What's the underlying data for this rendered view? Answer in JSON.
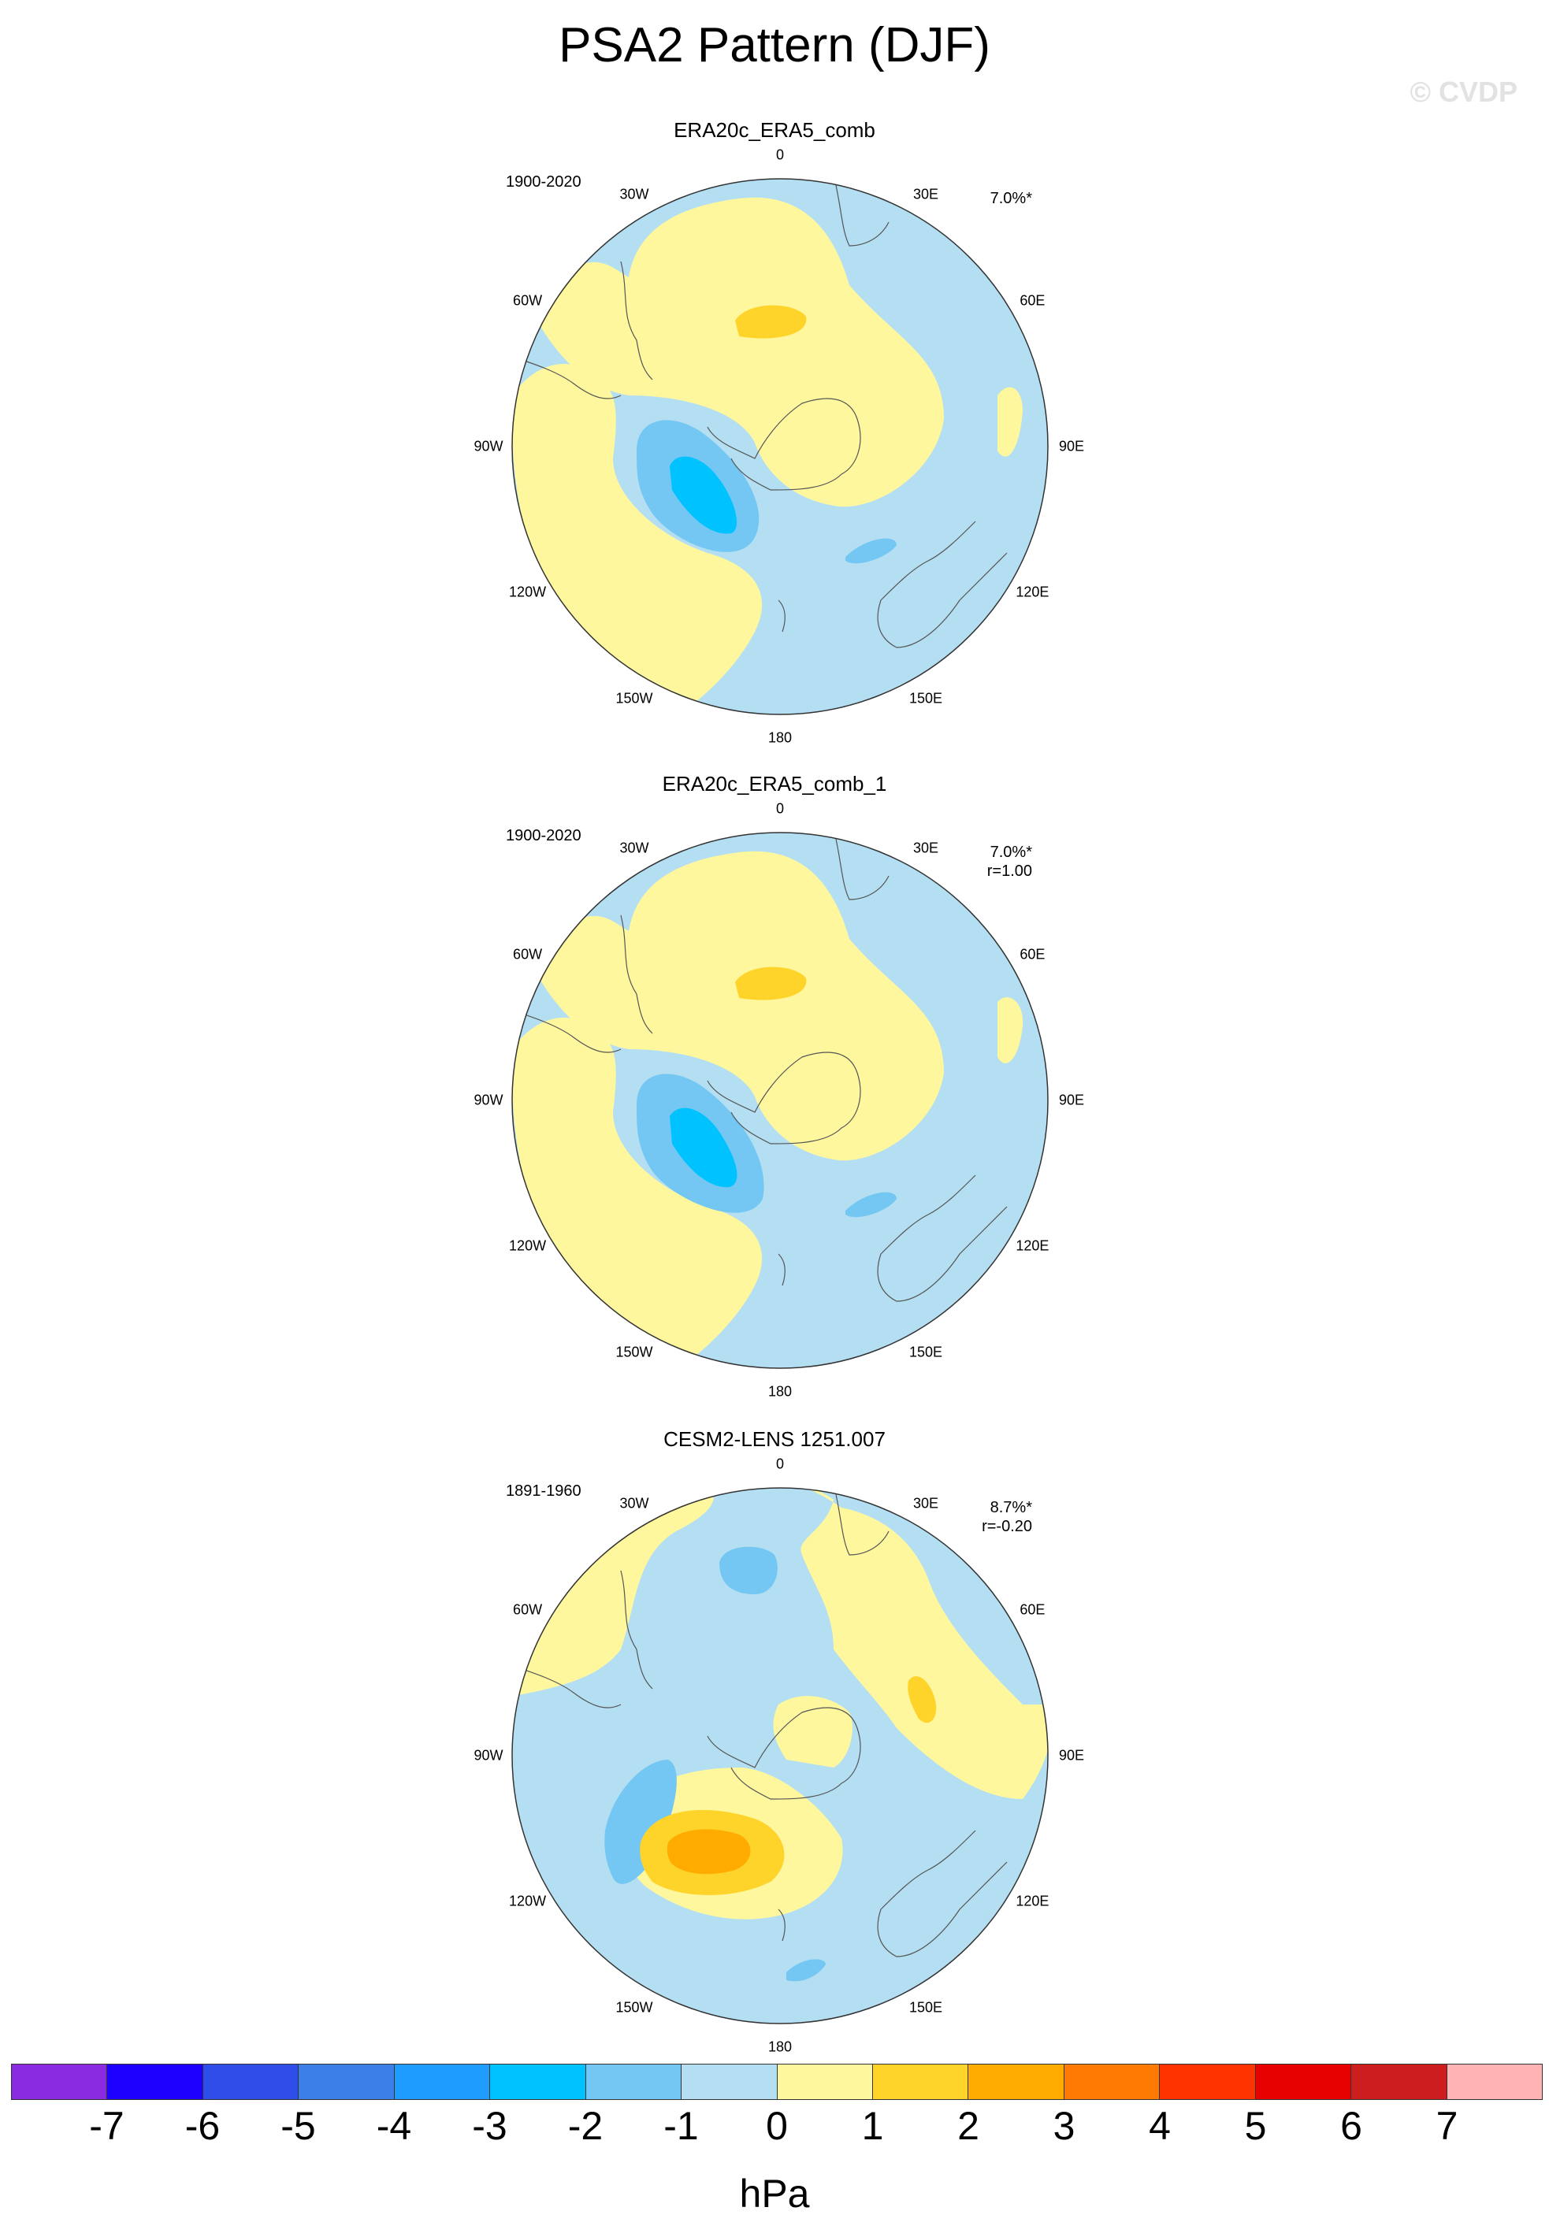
{
  "title": "PSA2 Pattern (DJF)",
  "watermark": "© CVDP",
  "longitude_labels": [
    "0",
    "30E",
    "60E",
    "90E",
    "120E",
    "150E",
    "180",
    "150W",
    "120W",
    "90W",
    "60W",
    "30W"
  ],
  "panels": [
    {
      "title": "ERA20c_ERA5_comb",
      "period": "1900-2020",
      "stat1": "7.0%*",
      "stat2": ""
    },
    {
      "title": "ERA20c_ERA5_comb_1",
      "period": "1900-2020",
      "stat1": "7.0%*",
      "stat2": "r=1.00"
    },
    {
      "title": "CESM2-LENS 1251.007",
      "period": "1891-1960",
      "stat1": "8.7%*",
      "stat2": "r=-0.20"
    }
  ],
  "colorbar": {
    "unit": "hPa",
    "ticks": [
      "-7",
      "-6",
      "-5",
      "-4",
      "-3",
      "-2",
      "-1",
      "0",
      "1",
      "2",
      "3",
      "4",
      "5",
      "6",
      "7"
    ],
    "colors": [
      "#8a2be2",
      "#1e00ff",
      "#2f4ee8",
      "#3b7fe8",
      "#1e9cff",
      "#00c2ff",
      "#73c7f2",
      "#b4dff2",
      "#fff79e",
      "#ffd42a",
      "#ffab00",
      "#ff7a00",
      "#ff3300",
      "#e60000",
      "#cc1e1e",
      "#ffb3b3"
    ]
  },
  "fill_colors": {
    "neg1": "#b4dff2",
    "neg2": "#73c7f2",
    "neg3": "#00c2ff",
    "pos1": "#fff79e",
    "pos2": "#ffd42a",
    "pos3": "#ffab00"
  }
}
